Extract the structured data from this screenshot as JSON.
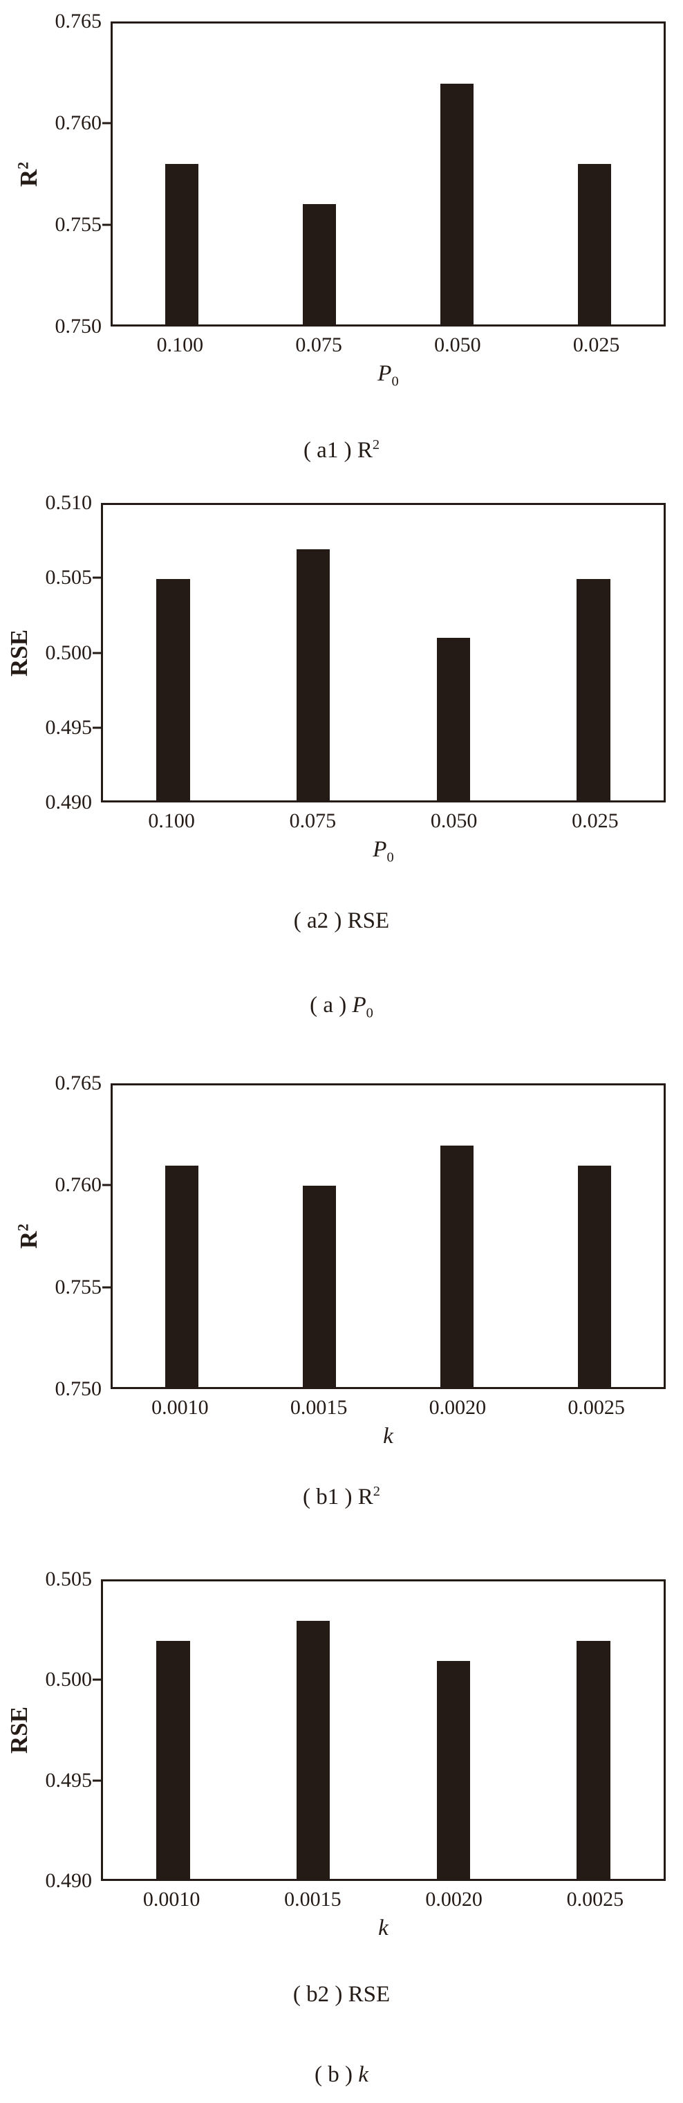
{
  "page": {
    "background": "#ffffff",
    "ink": "#241b16"
  },
  "chart_data": [
    {
      "type": "bar",
      "panel": "a1",
      "categories": [
        "0.100",
        "0.075",
        "0.050",
        "0.025"
      ],
      "values": [
        0.758,
        0.756,
        0.762,
        0.758
      ],
      "ylabel": {
        "text": "R",
        "sup": "2"
      },
      "xlabel": {
        "text": "P",
        "sub": "0",
        "italic": true
      },
      "ylim": [
        0.75,
        0.765
      ],
      "yticks": [
        0.765,
        0.76,
        0.755,
        0.75
      ],
      "ytick_labels": [
        "0.765",
        "0.760",
        "0.755",
        "0.750"
      ],
      "caption": {
        "prefix": "( a1 ) ",
        "text": "R",
        "sup": "2"
      },
      "grid": false,
      "legend": null,
      "bar_color": "#241b16"
    },
    {
      "type": "bar",
      "panel": "a2",
      "categories": [
        "0.100",
        "0.075",
        "0.050",
        "0.025"
      ],
      "values": [
        0.505,
        0.507,
        0.501,
        0.505
      ],
      "ylabel": {
        "text": "RSE"
      },
      "xlabel": {
        "text": "P",
        "sub": "0",
        "italic": true
      },
      "ylim": [
        0.49,
        0.51
      ],
      "yticks": [
        0.51,
        0.505,
        0.5,
        0.495,
        0.49
      ],
      "ytick_labels": [
        "0.510",
        "0.505",
        "0.500",
        "0.495",
        "0.490"
      ],
      "caption": {
        "prefix": "( a2 ) ",
        "text": "RSE"
      },
      "grid": false,
      "legend": null,
      "bar_color": "#241b16"
    },
    {
      "type": "bar",
      "panel": "b1",
      "categories": [
        "0.0010",
        "0.0015",
        "0.0020",
        "0.0025"
      ],
      "values": [
        0.761,
        0.76,
        0.762,
        0.761
      ],
      "ylabel": {
        "text": "R",
        "sup": "2"
      },
      "xlabel": {
        "text": "k",
        "italic": true
      },
      "ylim": [
        0.75,
        0.765
      ],
      "yticks": [
        0.765,
        0.76,
        0.755,
        0.75
      ],
      "ytick_labels": [
        "0.765",
        "0.760",
        "0.755",
        "0.750"
      ],
      "caption": {
        "prefix": "( b1 ) ",
        "text": "R",
        "sup": "2"
      },
      "grid": false,
      "legend": null,
      "bar_color": "#241b16"
    },
    {
      "type": "bar",
      "panel": "b2",
      "categories": [
        "0.0010",
        "0.0015",
        "0.0020",
        "0.0025"
      ],
      "values": [
        0.502,
        0.503,
        0.501,
        0.502
      ],
      "ylabel": {
        "text": "RSE"
      },
      "xlabel": {
        "text": "k",
        "italic": true
      },
      "ylim": [
        0.49,
        0.505
      ],
      "yticks": [
        0.505,
        0.5,
        0.495,
        0.49
      ],
      "ytick_labels": [
        "0.505",
        "0.500",
        "0.495",
        "0.490"
      ],
      "caption": {
        "prefix": "( b2 ) ",
        "text": "RSE"
      },
      "grid": false,
      "legend": null,
      "bar_color": "#241b16"
    }
  ],
  "group_captions": [
    {
      "prefix": "( a ) ",
      "text": "P",
      "sub": "0",
      "italic": true
    },
    {
      "prefix": "( b ) ",
      "text": "k",
      "italic": true
    }
  ]
}
